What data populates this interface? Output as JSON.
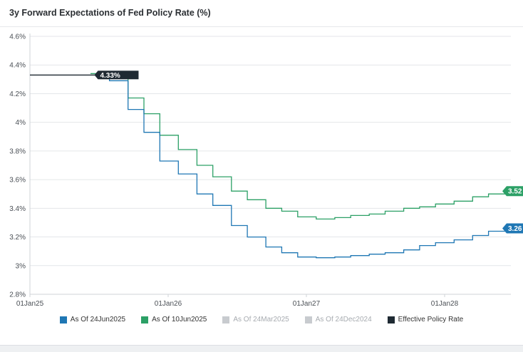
{
  "title": "3y Forward Expectations of Fed Policy Rate (%)",
  "colors": {
    "jun24": "#1f77b4",
    "jun10": "#2ca066",
    "inactive": "#c8cbcf",
    "effective": "#1f2a33"
  },
  "chart_data": {
    "type": "line",
    "step": true,
    "title": "3y Forward Expectations of Fed Policy Rate (%)",
    "xlabel": "",
    "ylabel": "",
    "ylim": [
      2.8,
      4.6
    ],
    "yticks": [
      "4.6%",
      "4.4%",
      "4.2%",
      "4%",
      "3.8%",
      "3.6%",
      "3.4%",
      "3.2%",
      "3%",
      "2.8%"
    ],
    "xticks": [
      "01Jan25",
      "01Jan26",
      "01Jan27",
      "01Jan28"
    ],
    "grid": "horizontal",
    "legend_position": "bottom",
    "series": [
      {
        "name": "As Of 24Jun2025",
        "color": "#1f77b4",
        "active": true,
        "end_label": "3.26",
        "points": [
          [
            "2025-06-24",
            4.33
          ],
          [
            "2025-07-30",
            4.29
          ],
          [
            "2025-09-17",
            4.09
          ],
          [
            "2025-10-29",
            3.93
          ],
          [
            "2025-12-10",
            3.73
          ],
          [
            "2026-01-28",
            3.64
          ],
          [
            "2026-03-18",
            3.5
          ],
          [
            "2026-04-29",
            3.42
          ],
          [
            "2026-06-17",
            3.28
          ],
          [
            "2026-07-29",
            3.2
          ],
          [
            "2026-09-16",
            3.13
          ],
          [
            "2026-10-28",
            3.09
          ],
          [
            "2026-12-09",
            3.06
          ],
          [
            "2027-01-27",
            3.055
          ],
          [
            "2027-03-17",
            3.06
          ],
          [
            "2027-04-28",
            3.07
          ],
          [
            "2027-06-16",
            3.08
          ],
          [
            "2027-07-28",
            3.09
          ],
          [
            "2027-09-15",
            3.11
          ],
          [
            "2027-10-27",
            3.14
          ],
          [
            "2027-12-08",
            3.16
          ],
          [
            "2028-01-26",
            3.18
          ],
          [
            "2028-03-15",
            3.21
          ],
          [
            "2028-04-26",
            3.24
          ],
          [
            "2028-06-24",
            3.26
          ]
        ]
      },
      {
        "name": "As Of 10Jun2025",
        "color": "#2ca066",
        "active": true,
        "end_label": "3.52",
        "points": [
          [
            "2025-06-10",
            4.34
          ],
          [
            "2025-07-30",
            4.33
          ],
          [
            "2025-09-17",
            4.17
          ],
          [
            "2025-10-29",
            4.06
          ],
          [
            "2025-12-10",
            3.91
          ],
          [
            "2026-01-28",
            3.81
          ],
          [
            "2026-03-18",
            3.7
          ],
          [
            "2026-04-29",
            3.62
          ],
          [
            "2026-06-17",
            3.52
          ],
          [
            "2026-07-29",
            3.46
          ],
          [
            "2026-09-16",
            3.4
          ],
          [
            "2026-10-28",
            3.38
          ],
          [
            "2026-12-09",
            3.34
          ],
          [
            "2027-01-27",
            3.325
          ],
          [
            "2027-03-17",
            3.335
          ],
          [
            "2027-04-28",
            3.35
          ],
          [
            "2027-06-16",
            3.36
          ],
          [
            "2027-07-28",
            3.38
          ],
          [
            "2027-09-15",
            3.4
          ],
          [
            "2027-10-27",
            3.41
          ],
          [
            "2027-12-08",
            3.43
          ],
          [
            "2028-01-26",
            3.45
          ],
          [
            "2028-03-15",
            3.48
          ],
          [
            "2028-04-26",
            3.5
          ],
          [
            "2028-06-10",
            3.52
          ]
        ]
      },
      {
        "name": "Effective Policy Rate",
        "color": "#1f2a33",
        "active": true,
        "end_label": "4.33%",
        "points": [
          [
            "2025-01-01",
            4.33
          ],
          [
            "2025-06-24",
            4.33
          ]
        ]
      }
    ],
    "inactive_series": [
      "As Of 24Mar2025",
      "As Of 24Dec2024"
    ]
  },
  "legend": [
    {
      "label": "As Of 24Jun2025",
      "color": "#1f77b4",
      "active": true
    },
    {
      "label": "As Of 10Jun2025",
      "color": "#2ca066",
      "active": true
    },
    {
      "label": "As Of 24Mar2025",
      "color": "#c8cbcf",
      "active": false
    },
    {
      "label": "As Of 24Dec2024",
      "color": "#c8cbcf",
      "active": false
    },
    {
      "label": "Effective Policy Rate",
      "color": "#1f2a33",
      "active": true
    }
  ]
}
